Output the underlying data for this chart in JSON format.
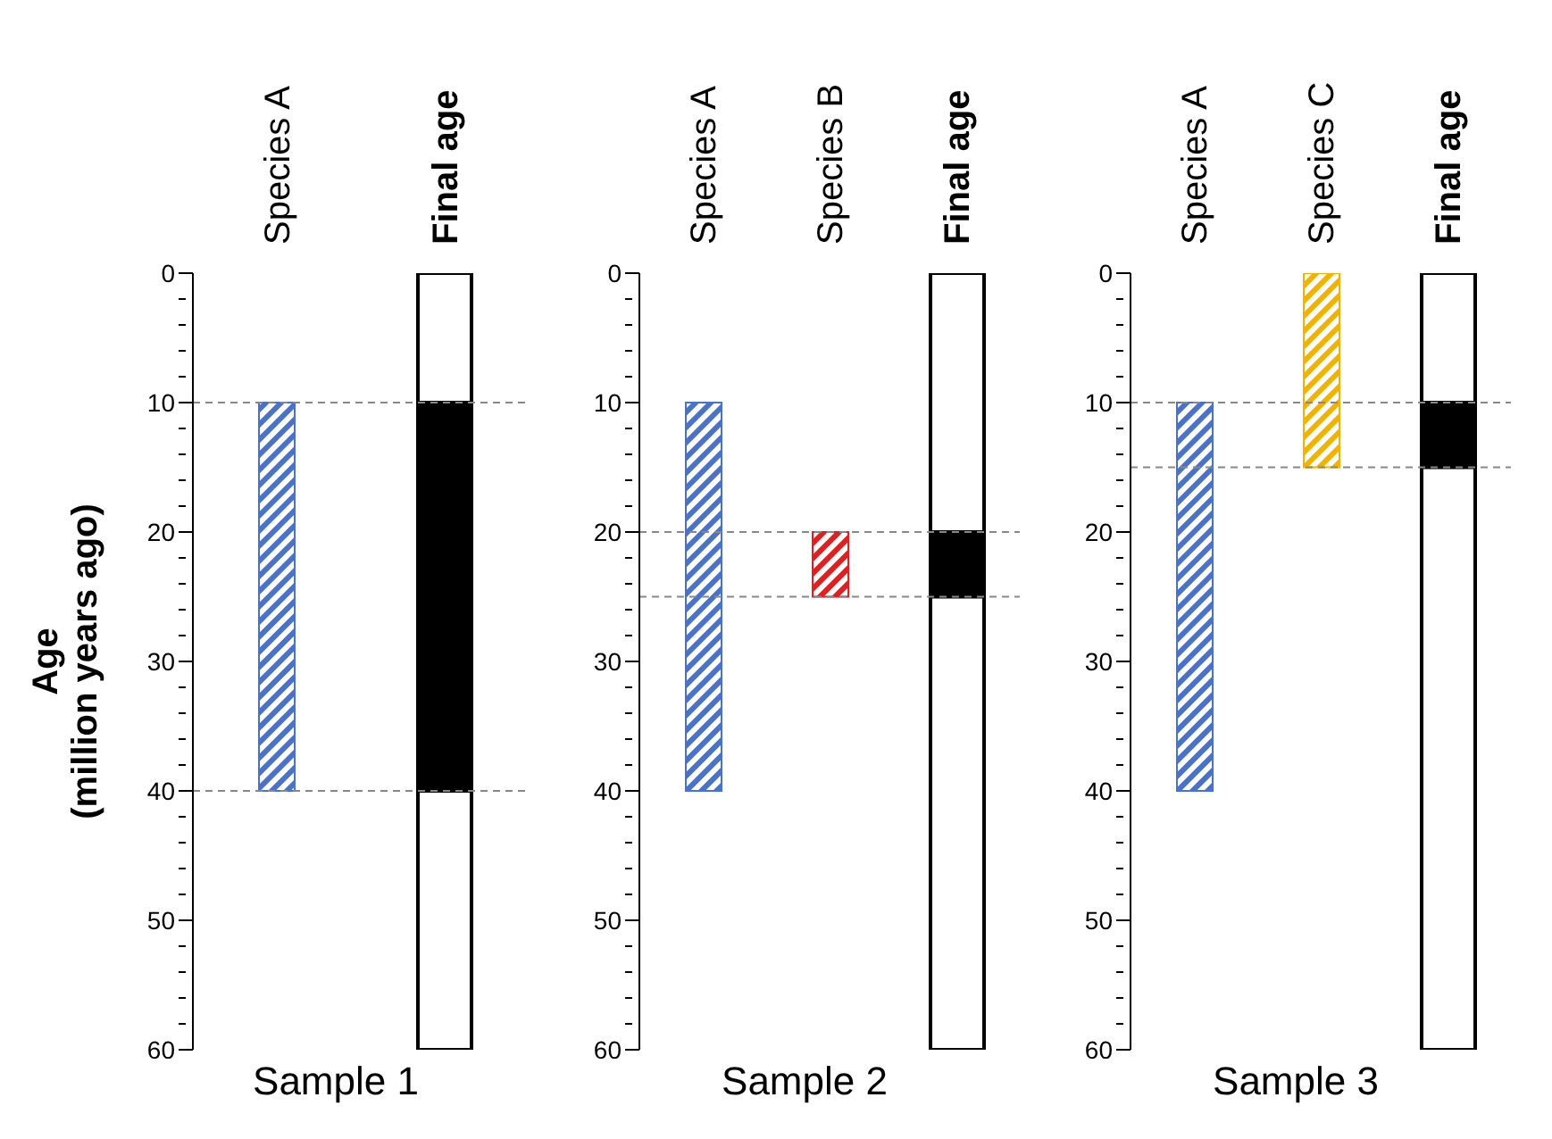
{
  "chart_data": [
    {
      "type": "bar",
      "xlabel": "Sample 1",
      "ylabel": "Age\n(million years ago)",
      "categories": [
        "Species A",
        "Final age"
      ],
      "series": [
        {
          "values": [
            30,
            null
          ],
          "base": [
            10,
            null
          ],
          "colors": [
            "#4a72c8",
            null
          ]
        },
        {
          "values": [
            null,
            60
          ],
          "base": [
            null,
            0
          ],
          "color": "#ffffff"
        },
        {
          "values": [
            null,
            30
          ],
          "base": [
            null,
            10
          ],
          "color": "#000000"
        }
      ],
      "ylim": [
        60,
        0
      ],
      "yticks": [
        0,
        {
          "value": 2,
          "label": null
        },
        {
          "value": 4,
          "label": null
        },
        {
          "value": 6,
          "label": null
        },
        {
          "value": 8,
          "label": null
        },
        10,
        {
          "value": 12,
          "label": null
        },
        {
          "value": 14,
          "label": null
        },
        {
          "value": 16,
          "label": null
        },
        {
          "value": 18,
          "label": null
        },
        20,
        {
          "value": 22,
          "label": null
        },
        {
          "value": 24,
          "label": null
        },
        {
          "value": 26,
          "label": null
        },
        {
          "value": 28,
          "label": null
        },
        30,
        {
          "value": 32,
          "label": null
        },
        {
          "value": 34,
          "label": null
        },
        {
          "value": 36,
          "label": null
        },
        {
          "value": 38,
          "label": null
        },
        40,
        {
          "value": 42,
          "label": null
        },
        {
          "value": 44,
          "label": null
        },
        {
          "value": 46,
          "label": null
        },
        {
          "value": 48,
          "label": null
        },
        50,
        {
          "value": 52,
          "label": null
        },
        {
          "value": 54,
          "label": null
        },
        {
          "value": 56,
          "label": null
        },
        {
          "value": 58,
          "label": null
        },
        60
      ],
      "ref_lines": [
        {
          "axis": "y",
          "value": 10,
          "color": "#888888",
          "line_style": "dashed"
        },
        {
          "axis": "y",
          "value": 40,
          "color": "#888888",
          "line_style": "dashed"
        }
      ],
      "grid": false,
      "legend": false
    },
    {
      "type": "bar",
      "xlabel": "Sample 2",
      "categories": [
        "Species A",
        "Species B",
        "Final age"
      ],
      "series": [
        {
          "values": [
            30,
            5,
            null
          ],
          "base": [
            10,
            20,
            null
          ],
          "colors": [
            "#4a72c8",
            "#e02020",
            null
          ]
        },
        {
          "values": [
            null,
            null,
            60
          ],
          "base": [
            null,
            null,
            0
          ],
          "color": "#ffffff"
        },
        {
          "values": [
            null,
            null,
            5
          ],
          "base": [
            null,
            null,
            20
          ],
          "color": "#000000"
        }
      ],
      "ylim": [
        60,
        0
      ],
      "yticks": [
        0,
        {
          "value": 2,
          "label": null
        },
        {
          "value": 4,
          "label": null
        },
        {
          "value": 6,
          "label": null
        },
        {
          "value": 8,
          "label": null
        },
        10,
        {
          "value": 12,
          "label": null
        },
        {
          "value": 14,
          "label": null
        },
        {
          "value": 16,
          "label": null
        },
        {
          "value": 18,
          "label": null
        },
        20,
        {
          "value": 22,
          "label": null
        },
        {
          "value": 24,
          "label": null
        },
        {
          "value": 26,
          "label": null
        },
        {
          "value": 28,
          "label": null
        },
        30,
        {
          "value": 32,
          "label": null
        },
        {
          "value": 34,
          "label": null
        },
        {
          "value": 36,
          "label": null
        },
        {
          "value": 38,
          "label": null
        },
        40,
        {
          "value": 42,
          "label": null
        },
        {
          "value": 44,
          "label": null
        },
        {
          "value": 46,
          "label": null
        },
        {
          "value": 48,
          "label": null
        },
        50,
        {
          "value": 52,
          "label": null
        },
        {
          "value": 54,
          "label": null
        },
        {
          "value": 56,
          "label": null
        },
        {
          "value": 58,
          "label": null
        },
        60
      ],
      "ref_lines": [
        {
          "axis": "y",
          "value": 20,
          "color": "#888888",
          "line_style": "dashed"
        },
        {
          "axis": "y",
          "value": 25,
          "color": "#888888",
          "line_style": "dashed"
        }
      ],
      "grid": false,
      "legend": false
    },
    {
      "type": "bar",
      "xlabel": "Sample 3",
      "categories": [
        "Species A",
        "Species C",
        "Final age"
      ],
      "series": [
        {
          "values": [
            30,
            15,
            null
          ],
          "base": [
            10,
            0,
            null
          ],
          "colors": [
            "#4a72c8",
            "#f0b400",
            null
          ]
        },
        {
          "values": [
            null,
            null,
            60
          ],
          "base": [
            null,
            null,
            0
          ],
          "color": "#ffffff"
        },
        {
          "values": [
            null,
            null,
            5
          ],
          "base": [
            null,
            null,
            10
          ],
          "color": "#000000"
        }
      ],
      "ylim": [
        60,
        0
      ],
      "yticks": [
        0,
        {
          "value": 2,
          "label": null
        },
        {
          "value": 4,
          "label": null
        },
        {
          "value": 6,
          "label": null
        },
        {
          "value": 8,
          "label": null
        },
        10,
        {
          "value": 12,
          "label": null
        },
        {
          "value": 14,
          "label": null
        },
        {
          "value": 16,
          "label": null
        },
        {
          "value": 18,
          "label": null
        },
        20,
        {
          "value": 22,
          "label": null
        },
        {
          "value": 24,
          "label": null
        },
        {
          "value": 26,
          "label": null
        },
        {
          "value": 28,
          "label": null
        },
        30,
        {
          "value": 32,
          "label": null
        },
        {
          "value": 34,
          "label": null
        },
        {
          "value": 36,
          "label": null
        },
        {
          "value": 38,
          "label": null
        },
        40,
        {
          "value": 42,
          "label": null
        },
        {
          "value": 44,
          "label": null
        },
        {
          "value": 46,
          "label": null
        },
        {
          "value": 48,
          "label": null
        },
        50,
        {
          "value": 52,
          "label": null
        },
        {
          "value": 54,
          "label": null
        },
        {
          "value": 56,
          "label": null
        },
        {
          "value": 58,
          "label": null
        },
        60
      ],
      "ref_lines": [
        {
          "axis": "y",
          "value": 10,
          "color": "#888888",
          "line_style": "dashed"
        },
        {
          "axis": "y",
          "value": 15,
          "color": "#888888",
          "line_style": "dashed"
        }
      ],
      "grid": false,
      "legend": false
    }
  ]
}
